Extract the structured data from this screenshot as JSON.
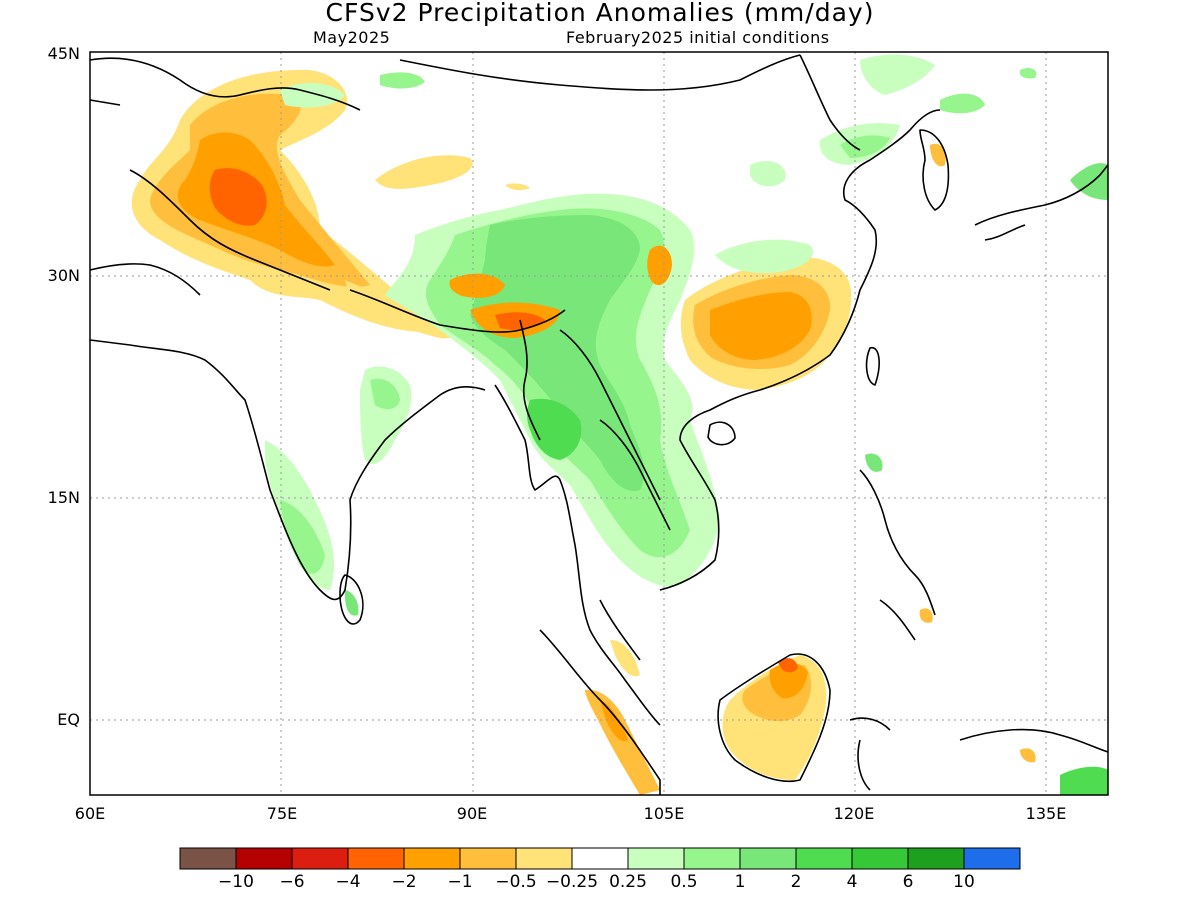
{
  "title": "CFSv2 Precipitation Anomalies (mm/day)",
  "subtitle_left": "May2025",
  "subtitle_right": "February2025 initial conditions",
  "y_ticks": [
    "45N",
    "30N",
    "15N",
    "EQ"
  ],
  "x_ticks": [
    "60E",
    "75E",
    "90E",
    "105E",
    "120E",
    "135E"
  ],
  "colorbar": {
    "colors": [
      "#7a5246",
      "#b40000",
      "#dc1e10",
      "#ff6400",
      "#ffa000",
      "#ffbe3c",
      "#ffe278",
      "#ffffff",
      "#c8ffbe",
      "#96f58c",
      "#78e678",
      "#50dc50",
      "#37c837",
      "#1ea01e",
      "#1e6eeb"
    ],
    "labels": [
      "−10",
      "−6",
      "−4",
      "−2",
      "−1",
      "−0.5",
      "−0.25",
      "0.25",
      "0.5",
      "1",
      "2",
      "4",
      "6",
      "10"
    ]
  }
}
